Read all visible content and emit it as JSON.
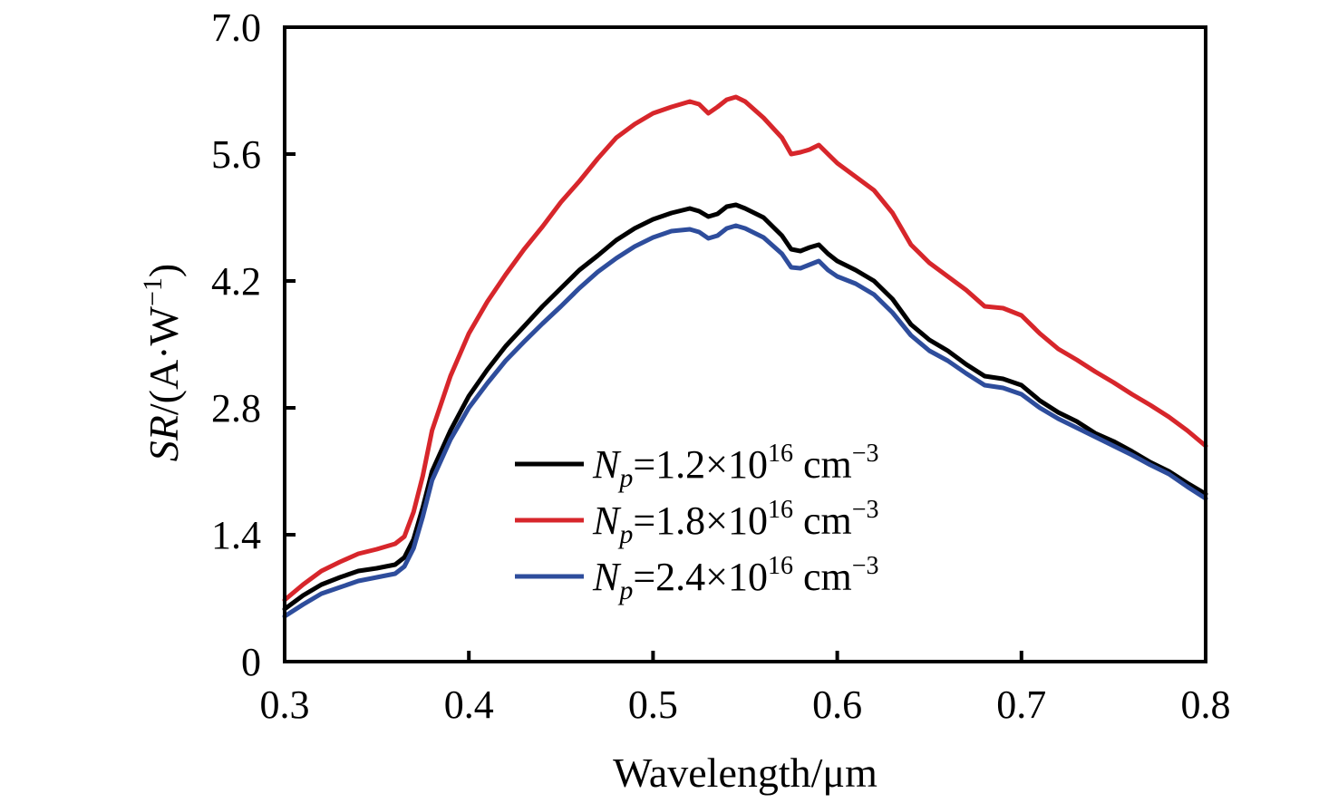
{
  "chart_data": {
    "type": "line",
    "xlabel": "Wavelength/μm",
    "ylabel": {
      "var": "SR",
      "prefix": "/(A·W",
      "exp": "−1",
      "suffix": ")"
    },
    "xlim": [
      0.3,
      0.8
    ],
    "ylim": [
      0,
      7.0
    ],
    "xticks": [
      0.3,
      0.4,
      0.5,
      0.6,
      0.7,
      0.8
    ],
    "xtick_labels": [
      "0.3",
      "0.4",
      "0.5",
      "0.6",
      "0.7",
      "0.8"
    ],
    "yticks": [
      0,
      1.4,
      2.8,
      4.2,
      5.6,
      7.0
    ],
    "ytick_labels": [
      "0",
      "1.4",
      "2.8",
      "4.2",
      "5.6",
      "7.0"
    ],
    "grid": false,
    "legend_position": "lower-center",
    "series": [
      {
        "name": "Np=1.2×10^16 cm^-3",
        "legend": {
          "var": "N",
          "sub": "p",
          "text": "=1.2×10",
          "exp1": "16",
          "unit": " cm",
          "exp2": "−3"
        },
        "color": "#000000",
        "x": [
          0.3,
          0.31,
          0.32,
          0.33,
          0.34,
          0.35,
          0.36,
          0.365,
          0.37,
          0.375,
          0.38,
          0.39,
          0.4,
          0.41,
          0.42,
          0.43,
          0.44,
          0.45,
          0.46,
          0.47,
          0.48,
          0.49,
          0.5,
          0.51,
          0.52,
          0.525,
          0.53,
          0.535,
          0.54,
          0.545,
          0.55,
          0.56,
          0.57,
          0.575,
          0.58,
          0.585,
          0.59,
          0.595,
          0.6,
          0.61,
          0.62,
          0.63,
          0.64,
          0.65,
          0.66,
          0.67,
          0.68,
          0.69,
          0.7,
          0.71,
          0.72,
          0.73,
          0.74,
          0.75,
          0.76,
          0.77,
          0.78,
          0.79,
          0.8
        ],
        "y": [
          0.58,
          0.73,
          0.85,
          0.93,
          1.0,
          1.03,
          1.07,
          1.15,
          1.35,
          1.7,
          2.1,
          2.55,
          2.93,
          3.22,
          3.48,
          3.7,
          3.92,
          4.12,
          4.32,
          4.48,
          4.65,
          4.78,
          4.88,
          4.95,
          5.0,
          4.97,
          4.91,
          4.94,
          5.02,
          5.04,
          5.0,
          4.9,
          4.7,
          4.55,
          4.53,
          4.57,
          4.6,
          4.5,
          4.42,
          4.32,
          4.2,
          4.0,
          3.72,
          3.55,
          3.43,
          3.28,
          3.15,
          3.12,
          3.05,
          2.88,
          2.75,
          2.65,
          2.52,
          2.43,
          2.32,
          2.2,
          2.1,
          1.97,
          1.85
        ]
      },
      {
        "name": "Np=1.8×10^16 cm^-3",
        "legend": {
          "var": "N",
          "sub": "p",
          "text": "=1.8×10",
          "exp1": "16",
          "unit": " cm",
          "exp2": "−3"
        },
        "color": "#d7262b",
        "x": [
          0.3,
          0.31,
          0.32,
          0.33,
          0.34,
          0.35,
          0.36,
          0.365,
          0.37,
          0.375,
          0.38,
          0.39,
          0.4,
          0.41,
          0.42,
          0.43,
          0.44,
          0.45,
          0.46,
          0.47,
          0.48,
          0.49,
          0.5,
          0.51,
          0.52,
          0.525,
          0.53,
          0.535,
          0.54,
          0.545,
          0.55,
          0.56,
          0.57,
          0.575,
          0.58,
          0.585,
          0.59,
          0.595,
          0.6,
          0.61,
          0.62,
          0.63,
          0.64,
          0.65,
          0.66,
          0.67,
          0.68,
          0.69,
          0.7,
          0.71,
          0.72,
          0.73,
          0.74,
          0.75,
          0.76,
          0.77,
          0.78,
          0.79,
          0.8
        ],
        "y": [
          0.68,
          0.85,
          1.0,
          1.1,
          1.19,
          1.24,
          1.3,
          1.38,
          1.65,
          2.05,
          2.55,
          3.15,
          3.62,
          3.97,
          4.27,
          4.55,
          4.8,
          5.07,
          5.3,
          5.55,
          5.78,
          5.93,
          6.05,
          6.12,
          6.18,
          6.15,
          6.05,
          6.12,
          6.2,
          6.23,
          6.18,
          6.0,
          5.78,
          5.6,
          5.62,
          5.65,
          5.7,
          5.6,
          5.5,
          5.35,
          5.2,
          4.95,
          4.6,
          4.4,
          4.25,
          4.1,
          3.92,
          3.9,
          3.82,
          3.62,
          3.45,
          3.33,
          3.2,
          3.08,
          2.95,
          2.83,
          2.7,
          2.55,
          2.38
        ]
      },
      {
        "name": "Np=2.4×10^16 cm^-3",
        "legend": {
          "var": "N",
          "sub": "p",
          "text": "=2.4×10",
          "exp1": "16",
          "unit": " cm",
          "exp2": "−3"
        },
        "color": "#2e4d9c",
        "x": [
          0.3,
          0.31,
          0.32,
          0.33,
          0.34,
          0.35,
          0.36,
          0.365,
          0.37,
          0.375,
          0.38,
          0.39,
          0.4,
          0.41,
          0.42,
          0.43,
          0.44,
          0.45,
          0.46,
          0.47,
          0.48,
          0.49,
          0.5,
          0.51,
          0.52,
          0.525,
          0.53,
          0.535,
          0.54,
          0.545,
          0.55,
          0.56,
          0.57,
          0.575,
          0.58,
          0.585,
          0.59,
          0.595,
          0.6,
          0.61,
          0.62,
          0.63,
          0.64,
          0.65,
          0.66,
          0.67,
          0.68,
          0.69,
          0.7,
          0.71,
          0.72,
          0.73,
          0.74,
          0.75,
          0.76,
          0.77,
          0.78,
          0.79,
          0.8
        ],
        "y": [
          0.5,
          0.63,
          0.75,
          0.82,
          0.89,
          0.93,
          0.97,
          1.05,
          1.25,
          1.6,
          2.0,
          2.45,
          2.8,
          3.07,
          3.32,
          3.53,
          3.73,
          3.92,
          4.12,
          4.3,
          4.45,
          4.58,
          4.68,
          4.75,
          4.77,
          4.74,
          4.67,
          4.7,
          4.78,
          4.81,
          4.78,
          4.68,
          4.5,
          4.35,
          4.34,
          4.38,
          4.42,
          4.32,
          4.25,
          4.17,
          4.05,
          3.85,
          3.6,
          3.43,
          3.32,
          3.18,
          3.05,
          3.02,
          2.95,
          2.8,
          2.68,
          2.58,
          2.48,
          2.38,
          2.28,
          2.17,
          2.07,
          1.93,
          1.8
        ]
      }
    ]
  }
}
